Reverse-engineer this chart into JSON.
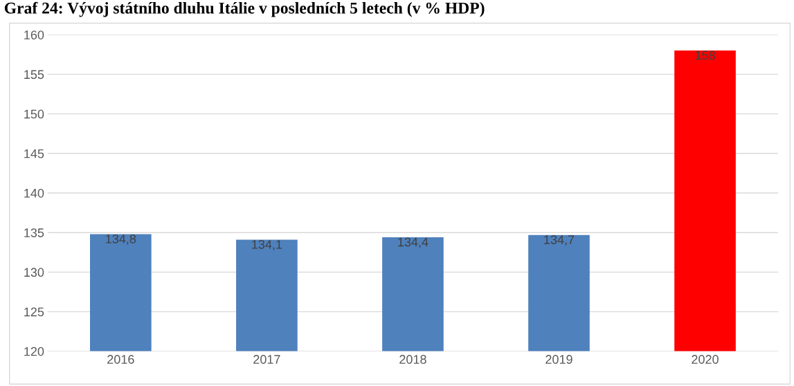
{
  "chart_data": {
    "type": "bar",
    "title": "Graf 24: Vývoj státního dluhu Itálie v posledních 5 letech (v % HDP)",
    "categories": [
      "2016",
      "2017",
      "2018",
      "2019",
      "2020"
    ],
    "values": [
      134.8,
      134.1,
      134.4,
      134.7,
      158
    ],
    "colors": [
      "#4f81bd",
      "#4f81bd",
      "#4f81bd",
      "#4f81bd",
      "#ff0000"
    ],
    "value_labels": [
      "134,8",
      "134,1",
      "134,4",
      "134,7",
      "158"
    ],
    "ylim": [
      120,
      160
    ],
    "yticks": [
      120,
      125,
      130,
      135,
      140,
      145,
      150,
      155,
      160
    ],
    "grid": "y",
    "legend": false
  }
}
